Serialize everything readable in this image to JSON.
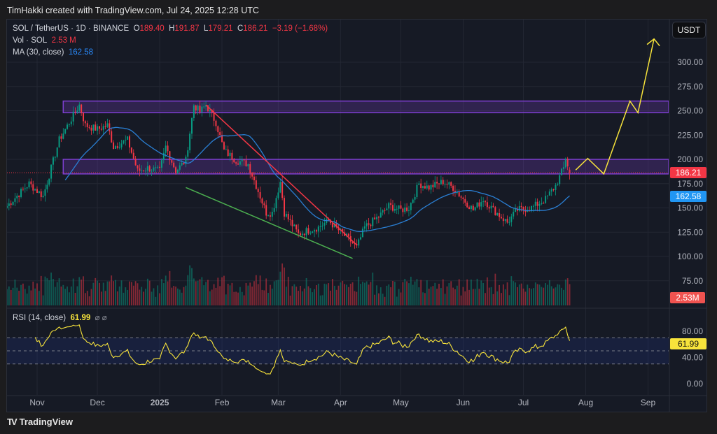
{
  "credit": "TimHakki created with TradingView.com, Jul 24, 2025 12:28 UTC",
  "legend": {
    "symbol": "SOL / TetherUS · 1D · BINANCE",
    "o_label": "O",
    "o": "189.40",
    "h_label": "H",
    "h": "191.87",
    "l_label": "L",
    "l": "179.21",
    "c_label": "C",
    "c": "186.21",
    "change": "−3.19 (−1.68%)",
    "vol_label": "Vol · SOL",
    "vol": "2.53 M",
    "ma_label": "MA (30, close)",
    "ma": "162.58",
    "rsi_label": "RSI (14, close)",
    "rsi": "61.99",
    "rsi_icons": "⌀ ⌀"
  },
  "currency": "USDT",
  "tags": {
    "price": "186.21",
    "ma": "162.58",
    "vol": "2.53M",
    "rsi": "61.99"
  },
  "colors": {
    "up": "#089981",
    "down": "#f23645",
    "ma": "#2a7fd4",
    "rsi": "#f7e33b",
    "zone": "#7e3fd1",
    "trend_down": "#f23645",
    "trend_support": "#4caf50",
    "projection": "#f7e33b"
  },
  "footer": {
    "brand": "TradingView"
  },
  "chart_data": {
    "type": "candlestick",
    "date_range": [
      "2024-10-17",
      "2025-07-24"
    ],
    "price_axis": {
      "ticks": [
        75,
        100,
        125,
        150,
        175,
        200,
        225,
        250,
        275,
        300
      ],
      "labels": [
        "75.00",
        "100.00",
        "125.00",
        "150.00",
        "175.00",
        "200.00",
        "225.00",
        "250.00",
        "275.00",
        "300.00"
      ]
    },
    "time_axis": {
      "ticks": [
        "2024-11-01",
        "2024-12-01",
        "2025-01-01",
        "2025-02-01",
        "2025-03-01",
        "2025-04-01",
        "2025-05-01",
        "2025-06-01",
        "2025-07-01",
        "2025-08-01",
        "2025-09-01"
      ],
      "labels": [
        "Nov",
        "Dec",
        "2025",
        "Feb",
        "Mar",
        "Apr",
        "May",
        "Jun",
        "Jul",
        "Aug",
        "Sep"
      ]
    },
    "close_path": [
      [
        "2024-10-17",
        152
      ],
      [
        "2024-10-28",
        175
      ],
      [
        "2024-11-04",
        162
      ],
      [
        "2024-11-08",
        191
      ],
      [
        "2024-11-12",
        220
      ],
      [
        "2024-11-17",
        238
      ],
      [
        "2024-11-22",
        256
      ],
      [
        "2024-11-25",
        235
      ],
      [
        "2024-12-01",
        231
      ],
      [
        "2024-12-06",
        235
      ],
      [
        "2024-12-09",
        213
      ],
      [
        "2024-12-16",
        220
      ],
      [
        "2024-12-21",
        188
      ],
      [
        "2024-12-26",
        191
      ],
      [
        "2025-01-01",
        188
      ],
      [
        "2025-01-04",
        213
      ],
      [
        "2025-01-09",
        188
      ],
      [
        "2025-01-14",
        199
      ],
      [
        "2025-01-18",
        256
      ],
      [
        "2025-01-21",
        249
      ],
      [
        "2025-01-24",
        256
      ],
      [
        "2025-01-29",
        238
      ],
      [
        "2025-02-02",
        209
      ],
      [
        "2025-02-08",
        199
      ],
      [
        "2025-02-14",
        195
      ],
      [
        "2025-02-18",
        173
      ],
      [
        "2025-02-23",
        145
      ],
      [
        "2025-02-26",
        145
      ],
      [
        "2025-03-02",
        177
      ],
      [
        "2025-03-04",
        145
      ],
      [
        "2025-03-11",
        123
      ],
      [
        "2025-03-16",
        127
      ],
      [
        "2025-03-21",
        130
      ],
      [
        "2025-03-26",
        137
      ],
      [
        "2025-03-31",
        127
      ],
      [
        "2025-04-06",
        116
      ],
      [
        "2025-04-09",
        109
      ],
      [
        "2025-04-13",
        130
      ],
      [
        "2025-04-20",
        141
      ],
      [
        "2025-04-25",
        152
      ],
      [
        "2025-05-01",
        148
      ],
      [
        "2025-05-05",
        150
      ],
      [
        "2025-05-10",
        175
      ],
      [
        "2025-05-15",
        171
      ],
      [
        "2025-05-22",
        177
      ],
      [
        "2025-05-27",
        171
      ],
      [
        "2025-06-01",
        159
      ],
      [
        "2025-06-06",
        148
      ],
      [
        "2025-06-11",
        159
      ],
      [
        "2025-06-16",
        148
      ],
      [
        "2025-06-23",
        135
      ],
      [
        "2025-06-28",
        148
      ],
      [
        "2025-07-05",
        150
      ],
      [
        "2025-07-12",
        159
      ],
      [
        "2025-07-17",
        173
      ],
      [
        "2025-07-21",
        191
      ],
      [
        "2025-07-22",
        202
      ],
      [
        "2025-07-24",
        186.21
      ]
    ],
    "last_candle": {
      "open": 189.4,
      "high": 191.87,
      "low": 179.21,
      "close": 186.21
    },
    "rsi_axis": {
      "ticks": [
        0,
        40,
        80
      ],
      "labels": [
        "0.00",
        "40.00",
        "80.00"
      ],
      "bands": [
        30,
        50,
        70
      ]
    },
    "drawings": {
      "zones": [
        {
          "from": "2024-11-14",
          "low": 248,
          "high": 260
        },
        {
          "from": "2024-11-14",
          "low": 185,
          "high": 200
        }
      ],
      "resistance_line": [
        [
          "2025-01-24",
          256
        ],
        [
          "2025-04-09",
          112
        ]
      ],
      "support_line": [
        [
          "2025-01-14",
          171
        ],
        [
          "2025-04-07",
          98
        ]
      ],
      "projection": [
        [
          "2025-07-27",
          189
        ],
        [
          "2025-08-02",
          201
        ],
        [
          "2025-08-10",
          185
        ],
        [
          "2025-08-23",
          260
        ],
        [
          "2025-08-27",
          248
        ],
        [
          "2025-09-04",
          324
        ]
      ]
    }
  }
}
